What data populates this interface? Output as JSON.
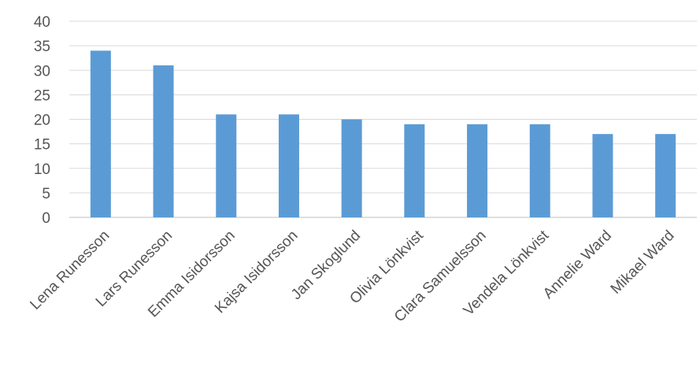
{
  "chart_data": {
    "type": "bar",
    "title": "",
    "xlabel": "",
    "ylabel": "",
    "categories": [
      "Lena Runesson",
      "Lars Runesson",
      "Emma Isidorsson",
      "Kajsa Isidorsson",
      "Jan Skoglund",
      "Olivia Lönkvist",
      "Clara Samuelsson",
      "Vendela Lönkvist",
      "Annelie Ward",
      "Mikael Ward"
    ],
    "values": [
      34,
      31,
      21,
      21,
      20,
      19,
      19,
      19,
      17,
      17
    ],
    "ylim": [
      0,
      40
    ],
    "yticks": [
      0,
      5,
      10,
      15,
      20,
      25,
      30,
      35,
      40
    ],
    "grid": true,
    "legend": "none",
    "bar_color": "#5b9bd5"
  }
}
